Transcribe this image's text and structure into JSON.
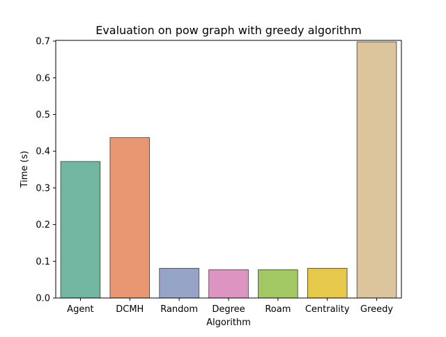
{
  "chart_data": {
    "type": "bar",
    "title": "Evaluation on pow graph with greedy algorithm",
    "xlabel": "Algorithm",
    "ylabel": "Time (s)",
    "categories": [
      "Agent",
      "DCMH",
      "Random",
      "Degree",
      "Roam",
      "Centrality",
      "Greedy"
    ],
    "values": [
      0.372,
      0.437,
      0.081,
      0.077,
      0.077,
      0.081,
      0.698
    ],
    "colors": [
      "#72b5a0",
      "#e99673",
      "#95a4c7",
      "#dc95c1",
      "#a2c864",
      "#e6c84b",
      "#dcc49c"
    ],
    "ylim": [
      0,
      0.702
    ],
    "yticks": [
      "0.0",
      "0.1",
      "0.2",
      "0.3",
      "0.4",
      "0.5",
      "0.6",
      "0.7"
    ],
    "grid": false,
    "legend": "none"
  }
}
